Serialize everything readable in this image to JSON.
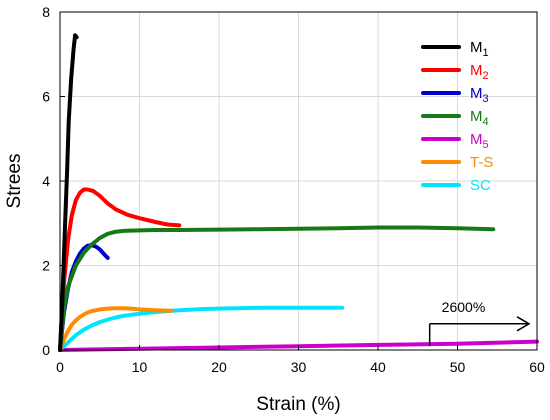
{
  "chart_data": {
    "type": "line",
    "xlabel": "Strain (%)",
    "ylabel": "Strees",
    "xlim": [
      0,
      60
    ],
    "ylim": [
      0,
      8
    ],
    "x_ticks": [
      "0",
      "10",
      "20",
      "30",
      "40",
      "50",
      "60"
    ],
    "y_ticks": [
      "0",
      "2",
      "4",
      "6",
      "8"
    ],
    "grid": true,
    "legend_position": "top-right",
    "annotation": {
      "text": "2600%",
      "arrow_from": [
        46.5,
        0.1
      ],
      "arrow_to": [
        59,
        0.62
      ]
    },
    "series": [
      {
        "name": "M",
        "sub": "1",
        "color": "#000000",
        "x": [
          0,
          0.3,
          0.6,
          0.9,
          1.1,
          1.4,
          1.7,
          1.9,
          2.1
        ],
        "y": [
          0,
          1.2,
          2.8,
          4.3,
          5.4,
          6.4,
          7.1,
          7.45,
          7.4
        ]
      },
      {
        "name": "M",
        "sub": "2",
        "color": "#ff0000",
        "x": [
          0,
          0.5,
          1,
          1.5,
          2,
          2.5,
          3,
          3.5,
          4.2,
          5,
          6,
          7,
          8.5,
          10,
          12,
          13.5,
          15
        ],
        "y": [
          0,
          1.6,
          2.6,
          3.2,
          3.55,
          3.72,
          3.8,
          3.8,
          3.76,
          3.65,
          3.47,
          3.33,
          3.2,
          3.12,
          3.03,
          2.97,
          2.95
        ]
      },
      {
        "name": "M",
        "sub": "3",
        "color": "#0000cc",
        "x": [
          0,
          0.5,
          1,
          1.5,
          2,
          2.5,
          3,
          3.5,
          4,
          4.5,
          5,
          5.5,
          6
        ],
        "y": [
          0,
          0.9,
          1.45,
          1.85,
          2.1,
          2.28,
          2.4,
          2.47,
          2.48,
          2.45,
          2.38,
          2.28,
          2.18
        ]
      },
      {
        "name": "M",
        "sub": "4",
        "color": "#157a15",
        "x": [
          0,
          0.5,
          1,
          2,
          3,
          4,
          5,
          6,
          7,
          8,
          10,
          12,
          15,
          20,
          25,
          30,
          35,
          40,
          45,
          50,
          54.5
        ],
        "y": [
          0,
          1.0,
          1.5,
          2.0,
          2.3,
          2.5,
          2.65,
          2.75,
          2.8,
          2.82,
          2.83,
          2.84,
          2.84,
          2.85,
          2.86,
          2.87,
          2.88,
          2.9,
          2.9,
          2.88,
          2.86
        ]
      },
      {
        "name": "M",
        "sub": "5",
        "color": "#cc00cc",
        "x": [
          0,
          10,
          20,
          30,
          40,
          50,
          60
        ],
        "y": [
          0,
          0.03,
          0.06,
          0.09,
          0.12,
          0.15,
          0.2
        ]
      },
      {
        "name": "T-S",
        "sub": "",
        "color": "#ff8c00",
        "x": [
          0,
          0.5,
          1,
          1.5,
          2,
          2.5,
          3,
          3.5,
          4,
          5,
          6,
          7,
          8,
          9,
          10,
          12,
          14
        ],
        "y": [
          0,
          0.25,
          0.45,
          0.6,
          0.7,
          0.78,
          0.84,
          0.89,
          0.92,
          0.96,
          0.98,
          0.99,
          0.99,
          0.98,
          0.96,
          0.94,
          0.93
        ]
      },
      {
        "name": "SC",
        "sub": "",
        "color": "#00e5ff",
        "x": [
          0,
          1,
          2,
          3,
          4,
          5,
          6,
          7,
          8,
          10,
          12,
          15,
          18,
          20,
          25,
          30,
          35.5
        ],
        "y": [
          0,
          0.18,
          0.35,
          0.48,
          0.58,
          0.66,
          0.72,
          0.77,
          0.81,
          0.86,
          0.9,
          0.94,
          0.97,
          0.98,
          1.0,
          1.0,
          1.0
        ]
      }
    ]
  }
}
